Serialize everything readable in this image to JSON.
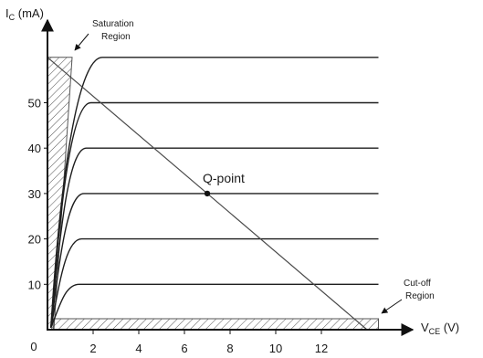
{
  "chart_data": {
    "type": "line",
    "y_axis_label": {
      "main": "I",
      "sub": "C",
      "unit": " (mA)"
    },
    "x_axis_label": {
      "main": "V",
      "sub": "CE",
      "unit": " (V)"
    },
    "origin_label": "0",
    "xlim": [
      0,
      15
    ],
    "ylim": [
      0,
      63
    ],
    "x_ticks": [
      {
        "value": 2,
        "label": "2"
      },
      {
        "value": 4,
        "label": "4"
      },
      {
        "value": 6,
        "label": "6"
      },
      {
        "value": 8,
        "label": "8"
      },
      {
        "value": 10,
        "label": "10"
      },
      {
        "value": 12,
        "label": "12"
      }
    ],
    "y_ticks": [
      {
        "value": 10,
        "label": "10"
      },
      {
        "value": 20,
        "label": "20"
      },
      {
        "value": 30,
        "label": "30"
      },
      {
        "value": 40,
        "label": "40"
      },
      {
        "value": 50,
        "label": "50"
      }
    ],
    "characteristic_curves": [
      {
        "ic": 10,
        "knee_vce": 1.4
      },
      {
        "ic": 20,
        "knee_vce": 1.5
      },
      {
        "ic": 30,
        "knee_vce": 1.6
      },
      {
        "ic": 40,
        "knee_vce": 1.7
      },
      {
        "ic": 50,
        "knee_vce": 1.9
      },
      {
        "ic": 60,
        "knee_vce": 2.4
      }
    ],
    "curve_end_vce": 14.5,
    "load_line": {
      "from": [
        0,
        60
      ],
      "to": [
        14,
        0
      ]
    },
    "q_point": {
      "vce": 7,
      "ic": 30,
      "label": "Q-point"
    },
    "saturation_region": {
      "label_lines": [
        "Saturation",
        "Region"
      ]
    },
    "cutoff_region": {
      "label_lines": [
        "Cut-off",
        "Region"
      ]
    },
    "colors": {
      "curves": "#1e1e1e",
      "load_line": "#4a4a4a",
      "hatch": "#555555",
      "axes": "#111111"
    }
  }
}
